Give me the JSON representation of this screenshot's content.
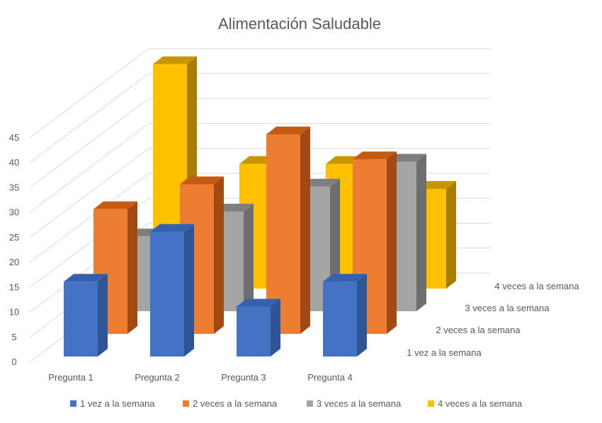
{
  "chart_data": {
    "type": "bar",
    "subtype": "3d-column",
    "title": "Alimentación Saludable",
    "categories": [
      "Pregunta 1",
      "Pregunta 2",
      "Pregunta 3",
      "Pregunta 4"
    ],
    "series": [
      {
        "name": "1 vez a la semana",
        "values": [
          15,
          25,
          10,
          15
        ],
        "color": "#4472C4",
        "side": "#2F5597",
        "top": "#3460B0"
      },
      {
        "name": "2 veces a la semana",
        "values": [
          25,
          30,
          40,
          35
        ],
        "color": "#ED7D31",
        "side": "#A24A14",
        "top": "#C55A11"
      },
      {
        "name": "3 veces a la semana",
        "values": [
          15,
          20,
          25,
          30
        ],
        "color": "#A5A5A5",
        "side": "#6E6E6E",
        "top": "#7F7F7F"
      },
      {
        "name": "4 veces a la semana",
        "values": [
          45,
          25,
          25,
          20
        ],
        "color": "#FFC000",
        "side": "#A77D00",
        "top": "#C89600"
      }
    ],
    "ylim": [
      0,
      45
    ],
    "yticks": [
      0,
      5,
      10,
      15,
      20,
      25,
      30,
      35,
      40,
      45
    ],
    "grid": true,
    "legend": "bottom"
  }
}
